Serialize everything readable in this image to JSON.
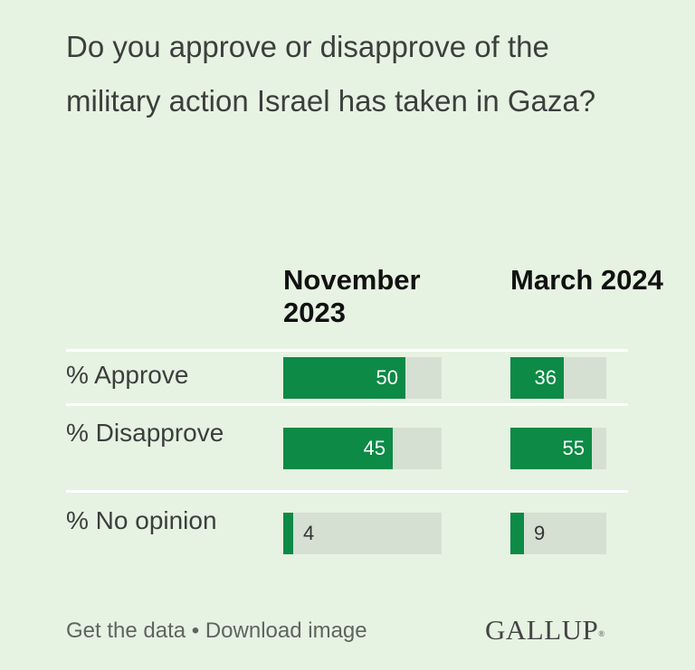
{
  "title": "Do you approve or disapprove of the military action Israel has taken in Gaza?",
  "chart_data": {
    "type": "bar",
    "columns": [
      "November 2023",
      "March 2024"
    ],
    "categories": [
      "% Approve",
      "% Disapprove",
      "% No opinion"
    ],
    "series": [
      {
        "name": "November 2023",
        "values": [
          50,
          45,
          4
        ]
      },
      {
        "name": "March 2024",
        "values": [
          36,
          55,
          9
        ]
      }
    ],
    "ylim": [
      0,
      65
    ],
    "colors": {
      "fill": "#0d8a45",
      "track": "#d5e0d2"
    }
  },
  "footer": {
    "get_data": "Get the data",
    "separator": " • ",
    "download": "Download image"
  },
  "logo": {
    "text": "GALLUP",
    "mark": "®"
  }
}
